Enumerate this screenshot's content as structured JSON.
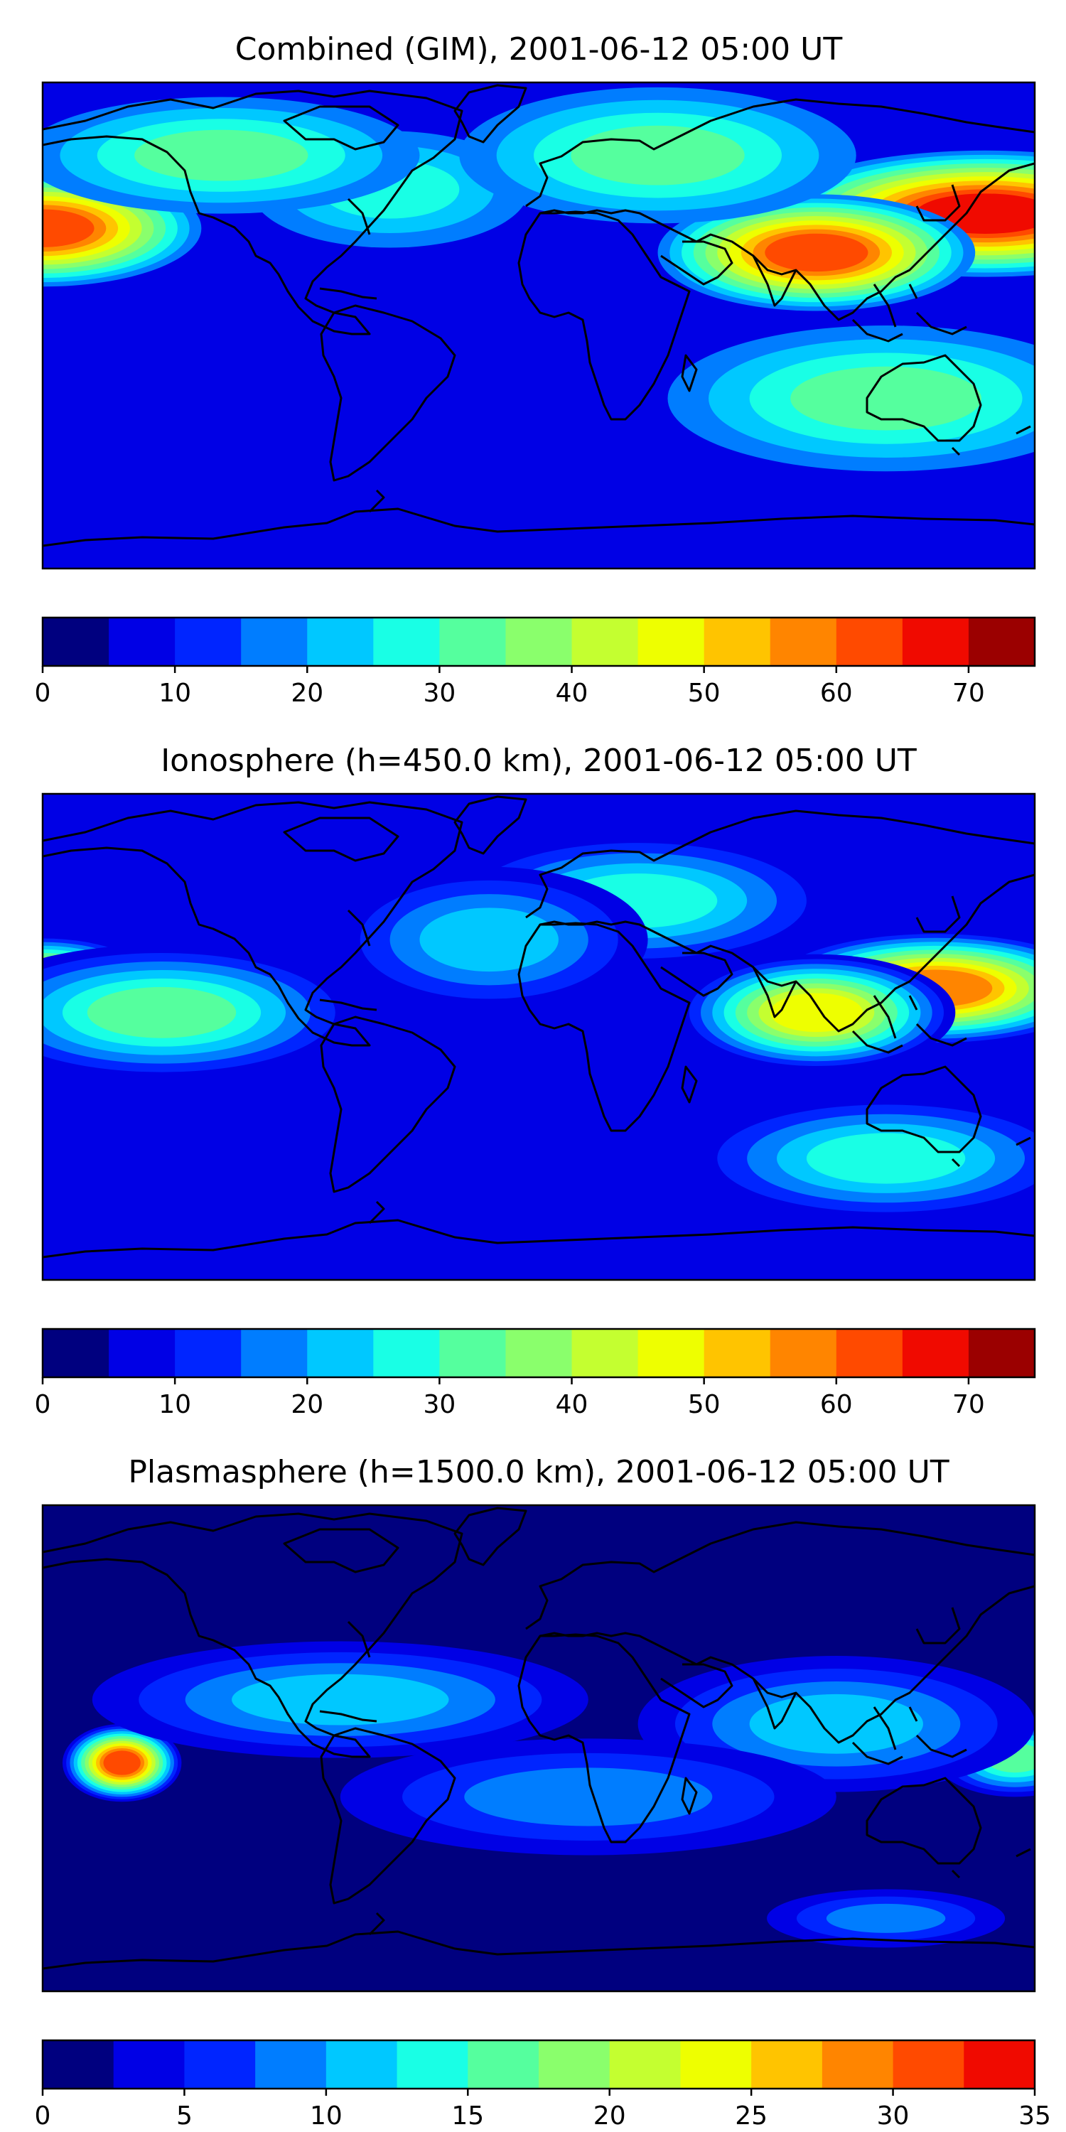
{
  "panels": [
    {
      "title": "Combined (GIM), 2001-06-12 05:00 UT",
      "colorbar": {
        "min": 0,
        "max": 75,
        "step": 5,
        "ticks": [
          0,
          10,
          20,
          30,
          40,
          50,
          60,
          70
        ],
        "tick_labels": [
          "0",
          "10",
          "20",
          "30",
          "40",
          "50",
          "60",
          "70"
        ]
      },
      "field_max": 72
    },
    {
      "title": "Ionosphere  (h=450.0 km), 2001-06-12 05:00 UT",
      "colorbar": {
        "min": 0,
        "max": 75,
        "step": 5,
        "ticks": [
          0,
          10,
          20,
          30,
          40,
          50,
          60,
          70
        ],
        "tick_labels": [
          "0",
          "10",
          "20",
          "30",
          "40",
          "50",
          "60",
          "70"
        ]
      },
      "field_max": 62
    },
    {
      "title": "Plasmasphere (h=1500.0 km), 2001-06-12 05:00 UT",
      "colorbar": {
        "min": 0,
        "max": 35,
        "step": 2.5,
        "ticks": [
          0,
          5,
          10,
          15,
          20,
          25,
          30,
          35
        ],
        "tick_labels": [
          "0",
          "5",
          "10",
          "15",
          "20",
          "25",
          "30",
          "35"
        ]
      },
      "field_max": 30
    }
  ],
  "palette": [
    "#00007f",
    "#0000e5",
    "#0025ff",
    "#007dff",
    "#00c8ff",
    "#19ffe5",
    "#55ff9e",
    "#8aff6c",
    "#c4ff30",
    "#eeff00",
    "#ffc400",
    "#ff8500",
    "#ff4a00",
    "#f00a00",
    "#9b0000"
  ]
}
